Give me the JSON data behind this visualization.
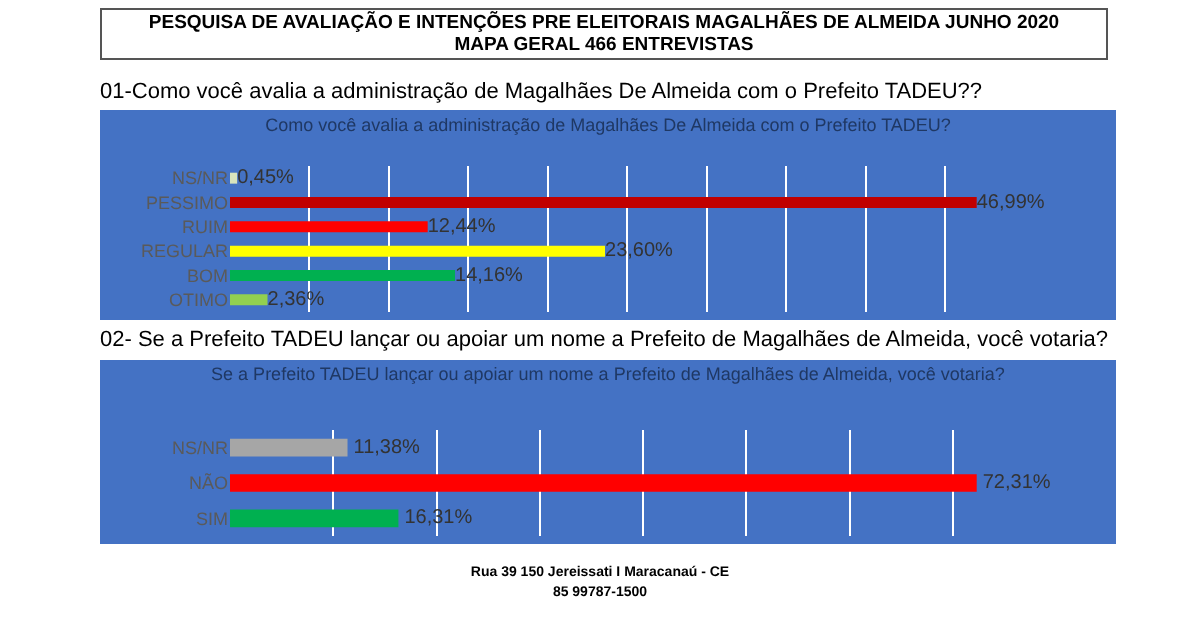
{
  "chart_data": [
    {
      "type": "bar",
      "orientation": "horizontal",
      "title": "Como você avalia a administração de Magalhães De Almeida com o Prefeito TADEU?",
      "subtitle": "01-Como você avalia a administração de Magalhães De Almeida com o Prefeito TADEU??",
      "annotations": [
        "PESQUISA DE AVALIAÇÃO E INTENÇÕES PRE ELEITORAIS MAGALHÃES DE ALMEIDA JUNHO 2020",
        "MAPA GERAL 466 ENTREVISTAS"
      ],
      "categories": [
        "NS/NR",
        "PESSIMO",
        "RUIM",
        "REGULAR",
        "BOM",
        "OTIMO"
      ],
      "values": [
        0.45,
        46.99,
        12.44,
        23.6,
        14.16,
        2.36
      ],
      "value_labels": [
        "0,45%",
        "46,99%",
        "12,44%",
        "23,60%",
        "14,16%",
        "2,36%"
      ],
      "colors": [
        "#d8e4bc",
        "#c00000",
        "#ff0000",
        "#ffff00",
        "#00b050",
        "#92d050"
      ],
      "tick_labels": "y",
      "grid": "x"
    },
    {
      "type": "bar",
      "orientation": "horizontal",
      "title": "Se a Prefeito TADEU lançar ou apoiar um nome a Prefeito de Magalhães de Almeida, você votaria?",
      "subtitle": "02- Se a Prefeito TADEU lançar ou apoiar um nome a Prefeito de Magalhães de Almeida, você votaria?",
      "annotations": [
        "Rua 39 150 Jereissati I Maracanaú - CE",
        "85 99787-1500"
      ],
      "categories": [
        "NS/NR",
        "NÃO",
        "SIM"
      ],
      "values": [
        11.38,
        72.31,
        16.31
      ],
      "value_labels": [
        "11,38%",
        "72,31%",
        "16,31%"
      ],
      "colors": [
        "#a6a6a6",
        "#ff0000",
        "#00b050"
      ],
      "tick_labels": "y",
      "grid": "x"
    }
  ]
}
